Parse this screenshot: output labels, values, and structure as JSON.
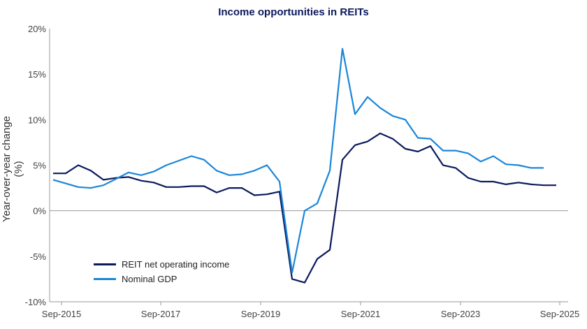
{
  "chart_data": {
    "type": "line",
    "title": "Income opportunities in REITs",
    "xlabel": "",
    "ylabel": "Year-over-year change (%)",
    "ylim": [
      -10,
      20
    ],
    "yticks": [
      "20%",
      "15%",
      "10%",
      "5%",
      "0%",
      "-5%",
      "-10%"
    ],
    "xticks": [
      "Sep-2015",
      "Sep-2017",
      "Sep-2019",
      "Sep-2021",
      "Sep-2023",
      "Sep-2025"
    ],
    "grid": false,
    "legend_position": "lower-left",
    "series": [
      {
        "name": "REIT net operating income",
        "color": "#0b1a5c",
        "values": [
          4.1,
          4.1,
          5.0,
          4.4,
          3.4,
          3.6,
          3.7,
          3.3,
          3.1,
          2.6,
          2.6,
          2.7,
          2.7,
          2.0,
          2.5,
          2.5,
          1.7,
          1.8,
          2.1,
          -7.5,
          -7.9,
          -5.3,
          -4.3,
          5.6,
          7.2,
          7.6,
          8.5,
          7.9,
          6.8,
          6.5,
          7.1,
          5.0,
          4.7,
          3.6,
          3.2,
          3.2,
          2.9,
          3.1,
          2.9,
          2.8,
          2.8
        ]
      },
      {
        "name": "Nominal GDP",
        "color": "#1a86d9",
        "values": [
          3.4,
          3.0,
          2.6,
          2.5,
          2.8,
          3.5,
          4.2,
          3.9,
          4.3,
          5.0,
          5.5,
          6.0,
          5.6,
          4.4,
          3.9,
          4.0,
          4.4,
          5.0,
          3.2,
          -6.8,
          0.0,
          0.8,
          4.4,
          17.8,
          10.6,
          12.5,
          11.3,
          10.4,
          10.0,
          8.0,
          7.9,
          6.6,
          6.6,
          6.3,
          5.4,
          6.0,
          5.1,
          5.0,
          4.7,
          4.7
        ]
      }
    ]
  },
  "legend": {
    "items": [
      {
        "label": "REIT net operating income",
        "color": "#0b1a5c"
      },
      {
        "label": "Nominal GDP",
        "color": "#1a86d9"
      }
    ]
  }
}
